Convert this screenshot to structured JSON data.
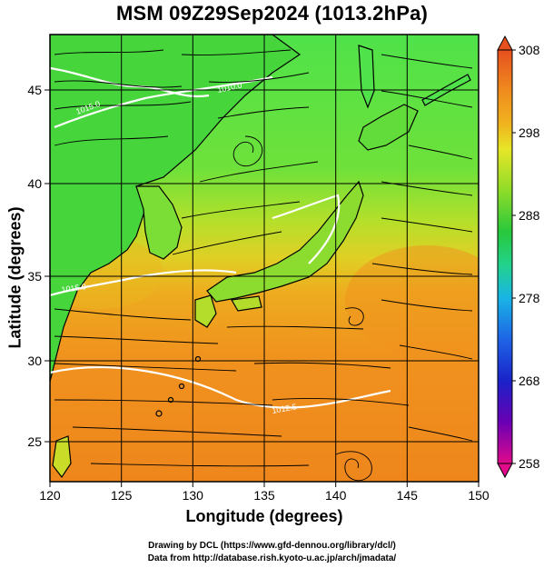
{
  "title": "MSM 09Z29Sep2024 (1013.2hPa)",
  "x_axis": {
    "label": "Longitude (degrees)",
    "ticks": [
      "120",
      "125",
      "130",
      "135",
      "140",
      "145",
      "150"
    ]
  },
  "y_axis": {
    "label": "Latitude  (degrees)",
    "ticks": [
      "25",
      "30",
      "35",
      "40",
      "45"
    ]
  },
  "colorbar": {
    "ticks": [
      "308",
      "298",
      "288",
      "278",
      "268",
      "258"
    ],
    "colors": [
      "#e00a8a",
      "#6a00b4",
      "#1a22c8",
      "#1e64e6",
      "#19b4e6",
      "#22d28c",
      "#28c83c",
      "#8edc28",
      "#e6e628",
      "#f0b41e",
      "#f08c1e",
      "#e6501e"
    ]
  },
  "contour_labels": [
    {
      "text": "1015.0",
      "lon": 123.5,
      "lat": 44.1
    },
    {
      "text": "1010.0",
      "lon": 128.2,
      "lat": 45.6
    },
    {
      "text": "1015.0",
      "lon": 122.2,
      "lat": 33.8
    },
    {
      "text": "1012.5",
      "lon": 136.5,
      "lat": 28.0
    }
  ],
  "credits": {
    "line1": "Drawing by DCL (https://www.gfd-dennou.org/library/dcl/)",
    "line2": "Data from http://database.rish.kyoto-u.ac.jp/arch/jmadata/"
  }
}
